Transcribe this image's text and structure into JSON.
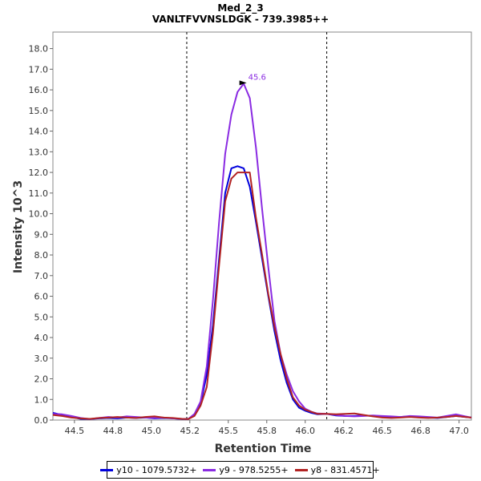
{
  "chart_data": {
    "type": "line",
    "title": "Med_2_3",
    "subtitle": "VANLTFVVNSLDGK - 739.3985++",
    "xlabel": "Retention Time",
    "ylabel": "Intensity 10^3",
    "xlim": [
      44.36,
      47.08
    ],
    "ylim": [
      0,
      18.8
    ],
    "x_ticks": [
      "44.5",
      "44.8",
      "45.0",
      "45.2",
      "45.5",
      "45.8",
      "46.0",
      "46.2",
      "46.5",
      "46.8",
      "47.0"
    ],
    "x_tick_values": [
      44.5,
      44.75,
      45.0,
      45.25,
      45.5,
      45.75,
      46.0,
      46.25,
      46.5,
      46.75,
      47.0
    ],
    "y_ticks": [
      "0.0",
      "1.0",
      "2.0",
      "3.0",
      "4.0",
      "5.0",
      "6.0",
      "7.0",
      "8.0",
      "9.0",
      "10.0",
      "11.0",
      "12.0",
      "13.0",
      "14.0",
      "15.0",
      "16.0",
      "17.0",
      "18.0"
    ],
    "y_tick_values": [
      0,
      1,
      2,
      3,
      4,
      5,
      6,
      7,
      8,
      9,
      10,
      11,
      12,
      13,
      14,
      15,
      16,
      17,
      18
    ],
    "integration_bounds": [
      45.23,
      46.14
    ],
    "peak_annotation": {
      "x": 45.64,
      "y": 16.3,
      "label": "45.6",
      "color": "#8a2be2"
    },
    "legend_position": "bottom",
    "series": [
      {
        "name": "y10 - 1079.5732+",
        "color": "#0000dd",
        "x": [
          44.36,
          44.42,
          44.48,
          44.54,
          44.6,
          44.66,
          44.72,
          44.78,
          44.84,
          44.9,
          44.96,
          45.02,
          45.08,
          45.14,
          45.2,
          45.24,
          45.28,
          45.32,
          45.36,
          45.4,
          45.44,
          45.48,
          45.52,
          45.56,
          45.6,
          45.64,
          45.68,
          45.72,
          45.76,
          45.8,
          45.84,
          45.88,
          45.92,
          45.96,
          46.0,
          46.04,
          46.08,
          46.14,
          46.2,
          46.26,
          46.32,
          46.38,
          46.44,
          46.5,
          46.56,
          46.62,
          46.68,
          46.74,
          46.8,
          46.86,
          46.92,
          46.98,
          47.04,
          47.08
        ],
        "y": [
          0.35,
          0.25,
          0.15,
          0.06,
          0.05,
          0.08,
          0.1,
          0.08,
          0.12,
          0.1,
          0.12,
          0.08,
          0.1,
          0.08,
          0.05,
          0.05,
          0.25,
          0.8,
          2.2,
          4.6,
          7.8,
          11.0,
          12.2,
          12.3,
          12.2,
          11.3,
          9.6,
          7.8,
          6.0,
          4.3,
          2.9,
          1.8,
          1.0,
          0.6,
          0.45,
          0.35,
          0.28,
          0.3,
          0.22,
          0.2,
          0.2,
          0.22,
          0.2,
          0.15,
          0.12,
          0.15,
          0.18,
          0.15,
          0.12,
          0.1,
          0.15,
          0.2,
          0.15,
          0.12
        ]
      },
      {
        "name": "y9 - 978.5255+",
        "color": "#8a2be2",
        "x": [
          44.36,
          44.42,
          44.48,
          44.54,
          44.6,
          44.66,
          44.72,
          44.78,
          44.84,
          44.9,
          44.96,
          45.02,
          45.08,
          45.14,
          45.2,
          45.24,
          45.28,
          45.32,
          45.36,
          45.4,
          45.44,
          45.48,
          45.52,
          45.56,
          45.6,
          45.64,
          45.68,
          45.72,
          45.76,
          45.8,
          45.84,
          45.88,
          45.92,
          45.96,
          46.0,
          46.04,
          46.08,
          46.14,
          46.2,
          46.26,
          46.32,
          46.38,
          46.44,
          46.5,
          46.56,
          46.62,
          46.68,
          46.74,
          46.8,
          46.86,
          46.92,
          46.98,
          47.04,
          47.08
        ],
        "y": [
          0.3,
          0.28,
          0.2,
          0.1,
          0.05,
          0.1,
          0.15,
          0.12,
          0.18,
          0.15,
          0.12,
          0.1,
          0.12,
          0.08,
          0.06,
          0.05,
          0.3,
          0.9,
          2.6,
          5.8,
          9.6,
          12.9,
          14.8,
          15.9,
          16.3,
          15.6,
          13.2,
          10.2,
          7.4,
          4.8,
          3.2,
          2.2,
          1.4,
          0.9,
          0.55,
          0.4,
          0.32,
          0.3,
          0.25,
          0.2,
          0.18,
          0.2,
          0.22,
          0.2,
          0.18,
          0.15,
          0.2,
          0.18,
          0.15,
          0.12,
          0.2,
          0.28,
          0.18,
          0.12
        ]
      },
      {
        "name": "y8 - 831.4571+",
        "color": "#b22222",
        "x": [
          44.36,
          44.42,
          44.48,
          44.54,
          44.6,
          44.66,
          44.72,
          44.78,
          44.84,
          44.9,
          44.96,
          45.02,
          45.08,
          45.14,
          45.2,
          45.24,
          45.28,
          45.32,
          45.36,
          45.4,
          45.44,
          45.48,
          45.52,
          45.56,
          45.6,
          45.64,
          45.68,
          45.72,
          45.76,
          45.8,
          45.84,
          45.88,
          45.92,
          45.96,
          46.0,
          46.04,
          46.08,
          46.14,
          46.2,
          46.26,
          46.32,
          46.38,
          46.44,
          46.5,
          46.56,
          46.62,
          46.68,
          46.74,
          46.8,
          46.86,
          46.92,
          46.98,
          47.04,
          47.08
        ],
        "y": [
          0.25,
          0.2,
          0.12,
          0.08,
          0.06,
          0.1,
          0.12,
          0.15,
          0.12,
          0.1,
          0.15,
          0.18,
          0.12,
          0.1,
          0.06,
          0.05,
          0.2,
          0.7,
          1.6,
          4.2,
          7.5,
          10.6,
          11.7,
          12.0,
          12.0,
          12.0,
          9.8,
          8.0,
          6.1,
          4.5,
          3.2,
          2.0,
          1.1,
          0.7,
          0.5,
          0.4,
          0.3,
          0.3,
          0.28,
          0.3,
          0.32,
          0.25,
          0.18,
          0.12,
          0.1,
          0.12,
          0.15,
          0.12,
          0.1,
          0.12,
          0.15,
          0.2,
          0.15,
          0.12
        ]
      }
    ]
  }
}
